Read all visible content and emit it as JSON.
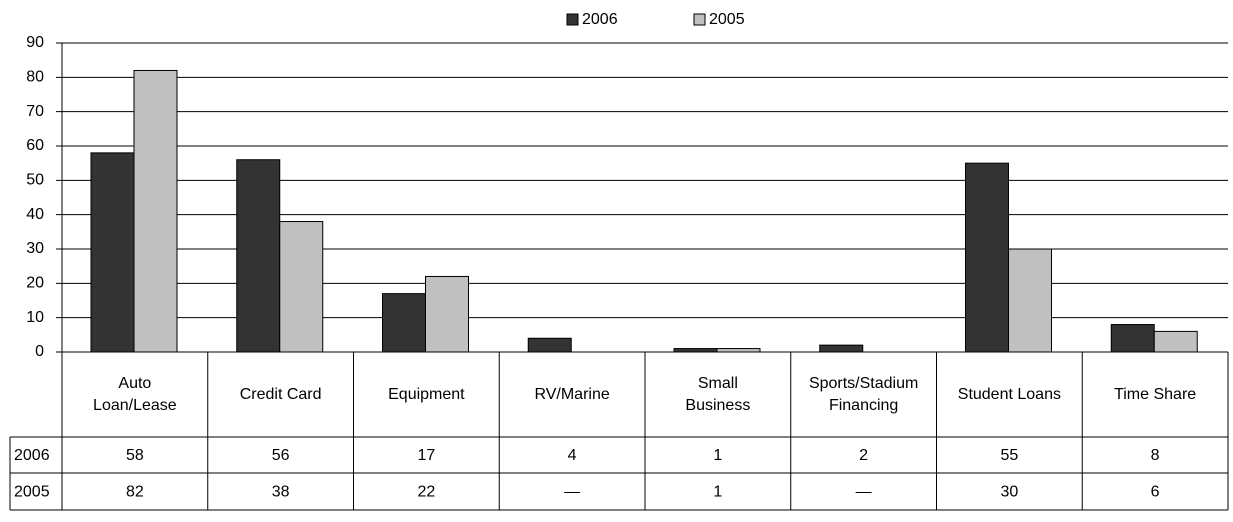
{
  "chart_data": {
    "type": "bar",
    "categories": [
      "Auto Loan/Lease",
      "Credit Card",
      "Equipment",
      "RV/Marine",
      "Small Business",
      "Sports/Stadium Financing",
      "Student Loans",
      "Time Share"
    ],
    "series": [
      {
        "name": "2006",
        "color": "#333333",
        "values": [
          58,
          56,
          17,
          4,
          1,
          2,
          55,
          8
        ]
      },
      {
        "name": "2005",
        "color": "#c0c0c0",
        "values": [
          82,
          38,
          22,
          null,
          1,
          null,
          30,
          6
        ],
        "value_labels": [
          "82",
          "38",
          "22",
          "—",
          "1",
          "—",
          "30",
          "6"
        ]
      }
    ],
    "ylim": [
      0,
      90
    ],
    "yticks": [
      0,
      10,
      20,
      30,
      40,
      50,
      60,
      70,
      80,
      90
    ],
    "grid": true,
    "legend": "top"
  }
}
